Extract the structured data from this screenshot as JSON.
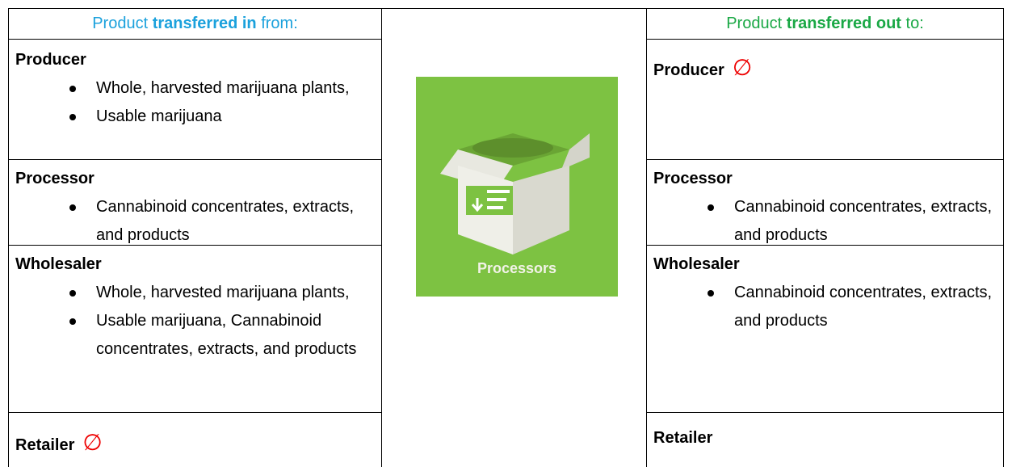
{
  "left_header": {
    "prefix": "Product",
    "emphasis": "transferred in",
    "suffix": "from:"
  },
  "right_header": {
    "prefix": "Product",
    "emphasis": "transferred out",
    "suffix": "to:"
  },
  "left_rows": [
    {
      "name": "Producer",
      "items": [
        "Whole, harvested marijuana plants,",
        "Usable marijuana"
      ]
    },
    {
      "name": "Processor",
      "items": [
        "Cannabinoid concentrates, extracts, and products"
      ]
    },
    {
      "name": "Wholesaler",
      "items": [
        "Whole, harvested marijuana plants,",
        "Usable marijuana, Cannabinoid concentrates, extracts, and products"
      ]
    },
    {
      "name": "Retailer",
      "mark": "∅",
      "items": []
    }
  ],
  "image_caption": "Processors",
  "right_rows": [
    {
      "name": "Producer",
      "mark": "∅",
      "items": []
    },
    {
      "name": "Processor",
      "items": [
        "Cannabinoid concentrates, extracts, and products"
      ]
    },
    {
      "name": "Wholesaler",
      "items": [
        "Cannabinoid concentrates, extracts, and products"
      ]
    },
    {
      "name": "Retailer",
      "items": []
    }
  ]
}
